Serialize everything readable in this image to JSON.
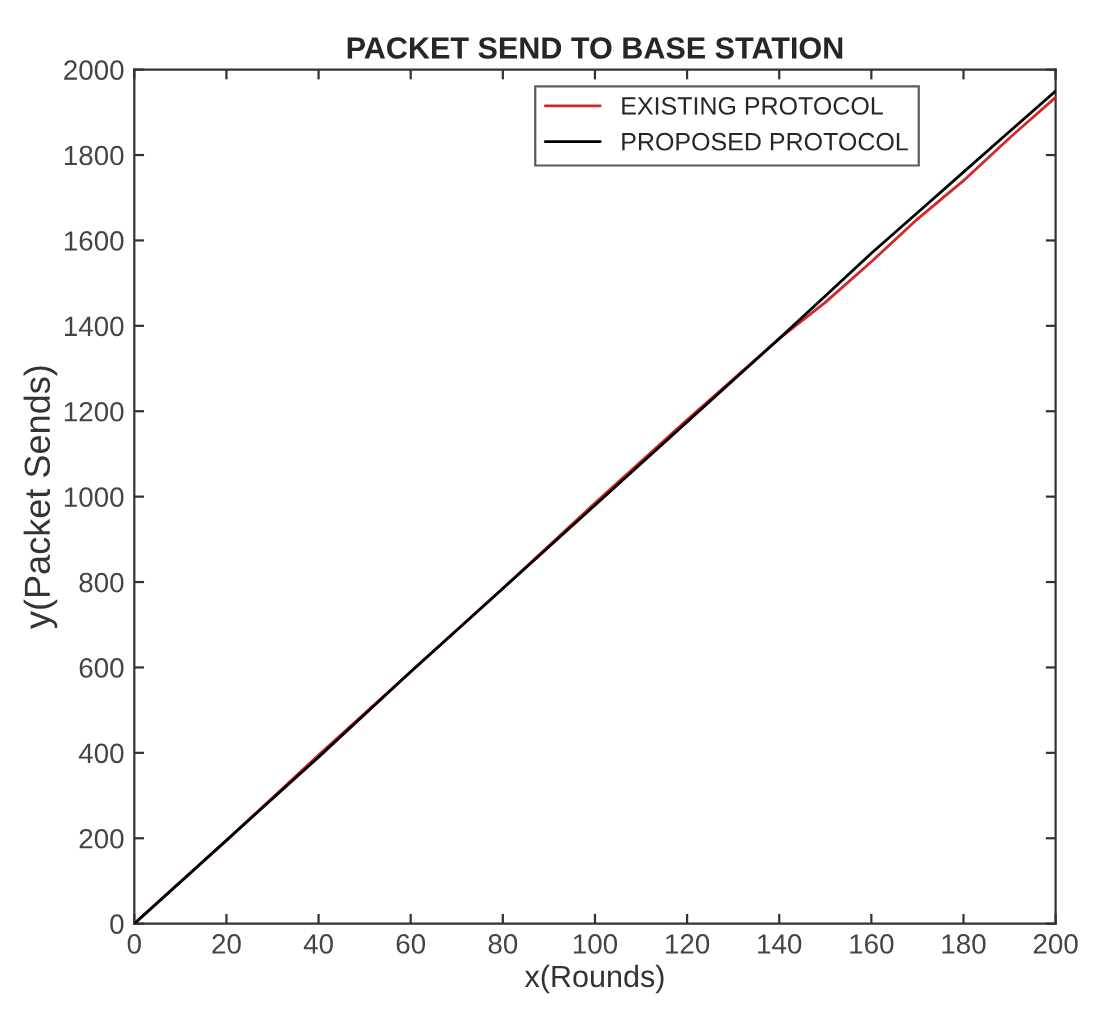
{
  "chart_data": {
    "type": "line",
    "title": "PACKET SEND TO BASE STATION",
    "xlabel": "x(Rounds)",
    "ylabel": "y(Packet Sends)",
    "series": [
      {
        "name": "EXISTING PROTOCOL",
        "color": "#d62728",
        "x": [
          0,
          20,
          40,
          60,
          80,
          100,
          120,
          140,
          150,
          160,
          170,
          180,
          190,
          200
        ],
        "values": [
          0,
          195,
          395,
          590,
          785,
          985,
          1180,
          1370,
          1455,
          1550,
          1650,
          1740,
          1840,
          1935
        ]
      },
      {
        "name": "PROPOSED PROTOCOL",
        "color": "#000000",
        "x": [
          0,
          20,
          40,
          60,
          80,
          100,
          120,
          140,
          150,
          160,
          170,
          180,
          190,
          200
        ],
        "values": [
          0,
          195,
          390,
          590,
          785,
          980,
          1175,
          1370,
          1470,
          1570,
          1665,
          1760,
          1855,
          1950
        ]
      }
    ],
    "xlim": [
      0,
      200
    ],
    "xticks": [
      0,
      20,
      40,
      60,
      80,
      100,
      120,
      140,
      160,
      180,
      200
    ],
    "ylim": [
      0,
      2000
    ],
    "yticks": [
      0,
      200,
      400,
      600,
      800,
      1000,
      1200,
      1400,
      1600,
      1800,
      2000
    ],
    "legend": "top right",
    "grid": false,
    "line_style": "solid",
    "marker": "none"
  }
}
